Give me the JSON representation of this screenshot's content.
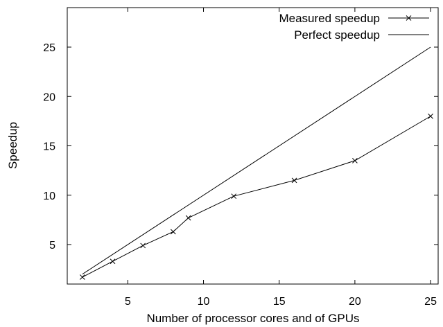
{
  "chart_data": {
    "type": "line",
    "xlabel": "Number of processor cores and of GPUs",
    "ylabel": "Speedup",
    "xlim": [
      1,
      25.5
    ],
    "ylim": [
      1,
      29
    ],
    "xticks": [
      5,
      10,
      15,
      20,
      25
    ],
    "yticks": [
      5,
      10,
      15,
      20,
      25
    ],
    "grid": false,
    "legend_position": "top-right",
    "series": [
      {
        "name": "Measured speedup",
        "marker": "x",
        "color": "#000000",
        "x": [
          2,
          4,
          6,
          8,
          9,
          12,
          16,
          20,
          25
        ],
        "y": [
          1.7,
          3.3,
          4.9,
          6.3,
          7.7,
          9.9,
          11.5,
          13.5,
          18.0
        ]
      },
      {
        "name": "Perfect speedup",
        "marker": "none",
        "color": "#000000",
        "x": [
          2,
          25
        ],
        "y": [
          2,
          25
        ]
      }
    ]
  }
}
